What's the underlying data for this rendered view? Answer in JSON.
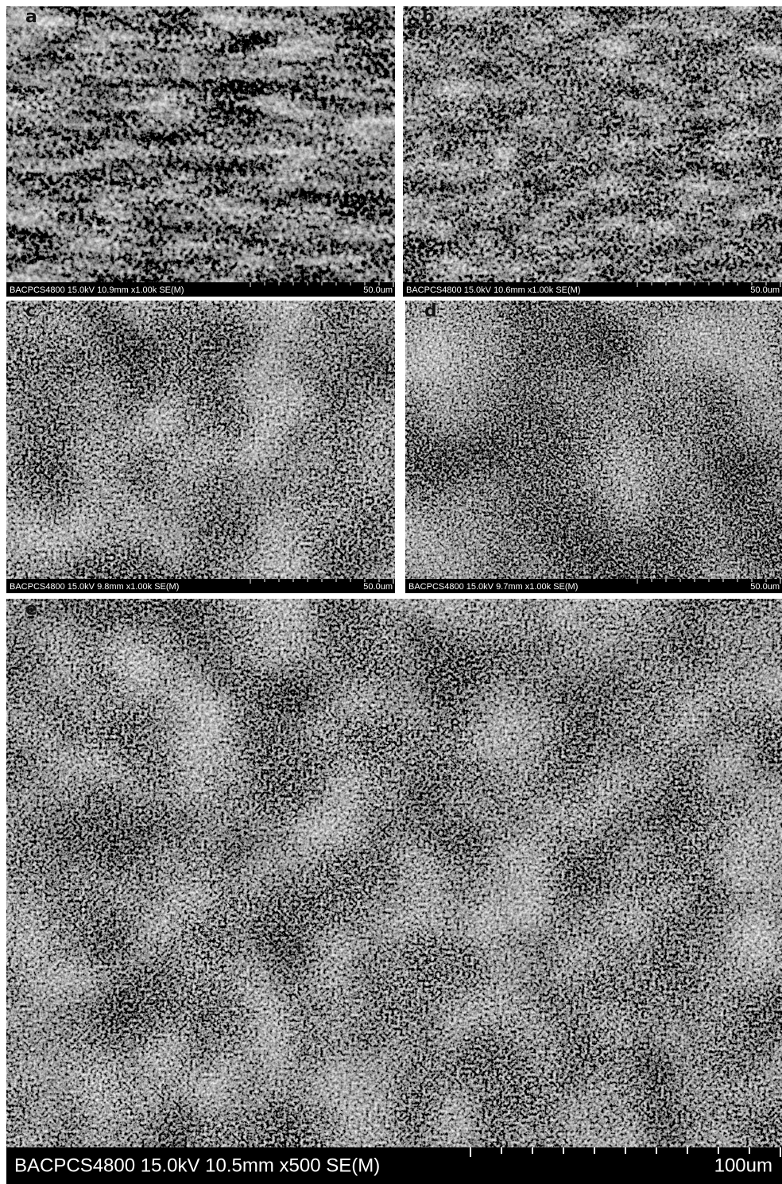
{
  "panels": [
    {
      "label": "a",
      "info": "BACPCS4800 15.0kV 10.9mm x1.00k SE(M)",
      "scale": "50.0um"
    },
    {
      "label": "b",
      "info": "BACPCS4800 15.0kV 10.6mm x1.00k SE(M)",
      "scale": "50.0um"
    },
    {
      "label": "c",
      "info": "BACPCS4800 15.0kV 9.8mm x1.00k SE(M)",
      "scale": "50.0um"
    },
    {
      "label": "d",
      "info": "BACPCS4800 15.0kV 9.7mm x1.00k SE(M)",
      "scale": "50.0um"
    },
    {
      "label": "e",
      "info": "BACPCS4800 15.0kV 10.5mm x500 SE(M)",
      "scale": "100um"
    }
  ]
}
